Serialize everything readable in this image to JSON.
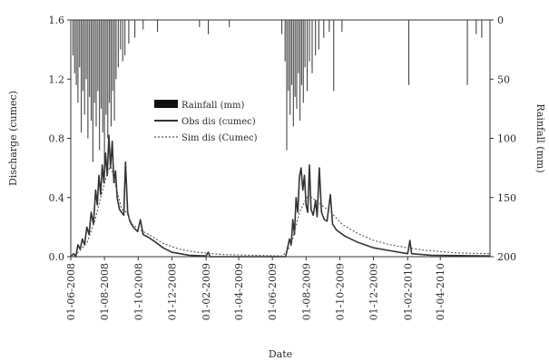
{
  "chart_data": {
    "type": "line",
    "xlabel": "Date",
    "ylabel_left": "Discharge (cumec)",
    "ylabel_right": "Rainfall (mm)",
    "y_left_lim": [
      0,
      1.6
    ],
    "y_left_ticks": [
      "0.0",
      "0.4",
      "0.8",
      "1.2",
      "1.6"
    ],
    "y_right_lim": [
      0,
      200
    ],
    "y_right_inverted": true,
    "y_right_ticks": [
      "0",
      "50",
      "100",
      "150",
      "200"
    ],
    "x_ticks": [
      "01-06-2008",
      "01-08-2008",
      "01-10-2008",
      "01-12-2008",
      "01-02-2009",
      "01-04-2009",
      "01-06-2009",
      "01-08-2009",
      "01-10-2009",
      "01-12-2009",
      "01-02-2010",
      "01-04-2010"
    ],
    "x_range": [
      "2008-06-01",
      "2010-06-30"
    ],
    "grid": false,
    "legend_placement": "center",
    "legend": [
      {
        "label": "Rainfall (mm)",
        "style": "bar"
      },
      {
        "label": "Obs dis (cumec)",
        "style": "solid"
      },
      {
        "label": "Sim dis (Cumec)",
        "style": "dotted"
      }
    ],
    "series": [
      {
        "name": "Obs dis (cumec)",
        "style": "solid",
        "color": "#333333",
        "points": [
          [
            "2008-06-01",
            0.0
          ],
          [
            "2008-06-06",
            0.02
          ],
          [
            "2008-06-10",
            0.0
          ],
          [
            "2008-06-14",
            0.08
          ],
          [
            "2008-06-18",
            0.05
          ],
          [
            "2008-06-22",
            0.12
          ],
          [
            "2008-06-26",
            0.08
          ],
          [
            "2008-06-30",
            0.2
          ],
          [
            "2008-07-04",
            0.15
          ],
          [
            "2008-07-08",
            0.3
          ],
          [
            "2008-07-12",
            0.22
          ],
          [
            "2008-07-16",
            0.45
          ],
          [
            "2008-07-19",
            0.35
          ],
          [
            "2008-07-22",
            0.55
          ],
          [
            "2008-07-25",
            0.42
          ],
          [
            "2008-07-28",
            0.62
          ],
          [
            "2008-07-31",
            0.5
          ],
          [
            "2008-08-03",
            0.7
          ],
          [
            "2008-08-06",
            0.55
          ],
          [
            "2008-08-09",
            0.82
          ],
          [
            "2008-08-12",
            0.6
          ],
          [
            "2008-08-15",
            0.78
          ],
          [
            "2008-08-18",
            0.5
          ],
          [
            "2008-08-21",
            0.58
          ],
          [
            "2008-08-24",
            0.4
          ],
          [
            "2008-08-28",
            0.32
          ],
          [
            "2008-09-01",
            0.3
          ],
          [
            "2008-09-05",
            0.28
          ],
          [
            "2008-09-08",
            0.64
          ],
          [
            "2008-09-12",
            0.3
          ],
          [
            "2008-09-16",
            0.24
          ],
          [
            "2008-09-22",
            0.2
          ],
          [
            "2008-09-30",
            0.17
          ],
          [
            "2008-10-05",
            0.25
          ],
          [
            "2008-10-10",
            0.15
          ],
          [
            "2008-10-20",
            0.13
          ],
          [
            "2008-11-01",
            0.1
          ],
          [
            "2008-11-15",
            0.06
          ],
          [
            "2008-12-01",
            0.03
          ],
          [
            "2009-01-01",
            0.01
          ],
          [
            "2009-02-01",
            0.005
          ],
          [
            "2009-02-05",
            0.03
          ],
          [
            "2009-02-08",
            0.0
          ],
          [
            "2009-04-01",
            0.0
          ],
          [
            "2009-06-01",
            0.0
          ],
          [
            "2009-06-25",
            0.0
          ],
          [
            "2009-06-28",
            0.05
          ],
          [
            "2009-07-02",
            0.12
          ],
          [
            "2009-07-05",
            0.08
          ],
          [
            "2009-07-08",
            0.25
          ],
          [
            "2009-07-11",
            0.15
          ],
          [
            "2009-07-14",
            0.4
          ],
          [
            "2009-07-17",
            0.3
          ],
          [
            "2009-07-20",
            0.54
          ],
          [
            "2009-07-23",
            0.6
          ],
          [
            "2009-07-26",
            0.45
          ],
          [
            "2009-07-29",
            0.55
          ],
          [
            "2009-08-01",
            0.35
          ],
          [
            "2009-08-04",
            0.3
          ],
          [
            "2009-08-07",
            0.62
          ],
          [
            "2009-08-10",
            0.32
          ],
          [
            "2009-08-14",
            0.28
          ],
          [
            "2009-08-18",
            0.38
          ],
          [
            "2009-08-21",
            0.27
          ],
          [
            "2009-08-25",
            0.6
          ],
          [
            "2009-08-29",
            0.3
          ],
          [
            "2009-09-03",
            0.25
          ],
          [
            "2009-09-08",
            0.24
          ],
          [
            "2009-09-14",
            0.42
          ],
          [
            "2009-09-18",
            0.22
          ],
          [
            "2009-09-25",
            0.18
          ],
          [
            "2009-10-10",
            0.14
          ],
          [
            "2009-11-01",
            0.1
          ],
          [
            "2009-12-01",
            0.06
          ],
          [
            "2010-01-01",
            0.04
          ],
          [
            "2010-02-01",
            0.02
          ],
          [
            "2010-02-05",
            0.11
          ],
          [
            "2010-02-08",
            0.02
          ],
          [
            "2010-03-15",
            0.01
          ],
          [
            "2010-06-30",
            0.005
          ]
        ]
      },
      {
        "name": "Sim dis (Cumec)",
        "style": "dotted",
        "color": "#555555",
        "points": [
          [
            "2008-06-01",
            0.0
          ],
          [
            "2008-06-15",
            0.03
          ],
          [
            "2008-07-01",
            0.1
          ],
          [
            "2008-07-15",
            0.25
          ],
          [
            "2008-07-25",
            0.4
          ],
          [
            "2008-08-05",
            0.55
          ],
          [
            "2008-08-12",
            0.62
          ],
          [
            "2008-08-20",
            0.5
          ],
          [
            "2008-09-01",
            0.32
          ],
          [
            "2008-09-10",
            0.3
          ],
          [
            "2008-09-20",
            0.22
          ],
          [
            "2008-10-05",
            0.18
          ],
          [
            "2008-10-25",
            0.14
          ],
          [
            "2008-11-15",
            0.09
          ],
          [
            "2008-12-15",
            0.05
          ],
          [
            "2009-01-15",
            0.03
          ],
          [
            "2009-03-01",
            0.015
          ],
          [
            "2009-06-20",
            0.005
          ],
          [
            "2009-07-05",
            0.08
          ],
          [
            "2009-07-20",
            0.3
          ],
          [
            "2009-08-05",
            0.42
          ],
          [
            "2009-08-25",
            0.36
          ],
          [
            "2009-09-15",
            0.3
          ],
          [
            "2009-10-05",
            0.22
          ],
          [
            "2009-11-01",
            0.16
          ],
          [
            "2009-12-01",
            0.11
          ],
          [
            "2010-01-01",
            0.08
          ],
          [
            "2010-02-01",
            0.06
          ],
          [
            "2010-03-01",
            0.045
          ],
          [
            "2010-04-01",
            0.035
          ],
          [
            "2010-05-01",
            0.025
          ],
          [
            "2010-06-30",
            0.02
          ]
        ]
      }
    ],
    "rainfall_mm": [
      [
        "2008-06-05",
        30
      ],
      [
        "2008-06-08",
        45
      ],
      [
        "2008-06-11",
        55
      ],
      [
        "2008-06-14",
        70
      ],
      [
        "2008-06-17",
        40
      ],
      [
        "2008-06-20",
        95
      ],
      [
        "2008-06-23",
        60
      ],
      [
        "2008-06-26",
        80
      ],
      [
        "2008-06-29",
        50
      ],
      [
        "2008-07-02",
        100
      ],
      [
        "2008-07-05",
        65
      ],
      [
        "2008-07-08",
        85
      ],
      [
        "2008-07-11",
        120
      ],
      [
        "2008-07-14",
        70
      ],
      [
        "2008-07-17",
        90
      ],
      [
        "2008-07-20",
        60
      ],
      [
        "2008-07-23",
        110
      ],
      [
        "2008-07-26",
        75
      ],
      [
        "2008-07-29",
        95
      ],
      [
        "2008-08-01",
        130
      ],
      [
        "2008-08-04",
        80
      ],
      [
        "2008-08-07",
        100
      ],
      [
        "2008-08-10",
        70
      ],
      [
        "2008-08-13",
        90
      ],
      [
        "2008-08-16",
        60
      ],
      [
        "2008-08-19",
        85
      ],
      [
        "2008-08-22",
        50
      ],
      [
        "2008-08-26",
        40
      ],
      [
        "2008-08-30",
        25
      ],
      [
        "2008-09-03",
        35
      ],
      [
        "2008-09-07",
        30
      ],
      [
        "2008-09-14",
        20
      ],
      [
        "2008-09-25",
        15
      ],
      [
        "2008-10-10",
        8
      ],
      [
        "2008-11-05",
        10
      ],
      [
        "2009-01-20",
        6
      ],
      [
        "2009-02-05",
        12
      ],
      [
        "2009-03-15",
        6
      ],
      [
        "2009-06-18",
        12
      ],
      [
        "2009-06-24",
        35
      ],
      [
        "2009-06-27",
        110
      ],
      [
        "2009-06-30",
        60
      ],
      [
        "2009-07-03",
        80
      ],
      [
        "2009-07-06",
        55
      ],
      [
        "2009-07-09",
        90
      ],
      [
        "2009-07-12",
        65
      ],
      [
        "2009-07-15",
        75
      ],
      [
        "2009-07-18",
        45
      ],
      [
        "2009-07-21",
        85
      ],
      [
        "2009-07-24",
        55
      ],
      [
        "2009-07-27",
        70
      ],
      [
        "2009-07-30",
        40
      ],
      [
        "2009-08-03",
        60
      ],
      [
        "2009-08-07",
        35
      ],
      [
        "2009-08-12",
        45
      ],
      [
        "2009-08-18",
        30
      ],
      [
        "2009-08-24",
        25
      ],
      [
        "2009-09-02",
        15
      ],
      [
        "2009-09-12",
        10
      ],
      [
        "2009-09-20",
        60
      ],
      [
        "2009-10-05",
        10
      ],
      [
        "2010-02-03",
        55
      ],
      [
        "2010-05-20",
        55
      ],
      [
        "2010-06-05",
        12
      ],
      [
        "2010-06-15",
        15
      ]
    ]
  }
}
